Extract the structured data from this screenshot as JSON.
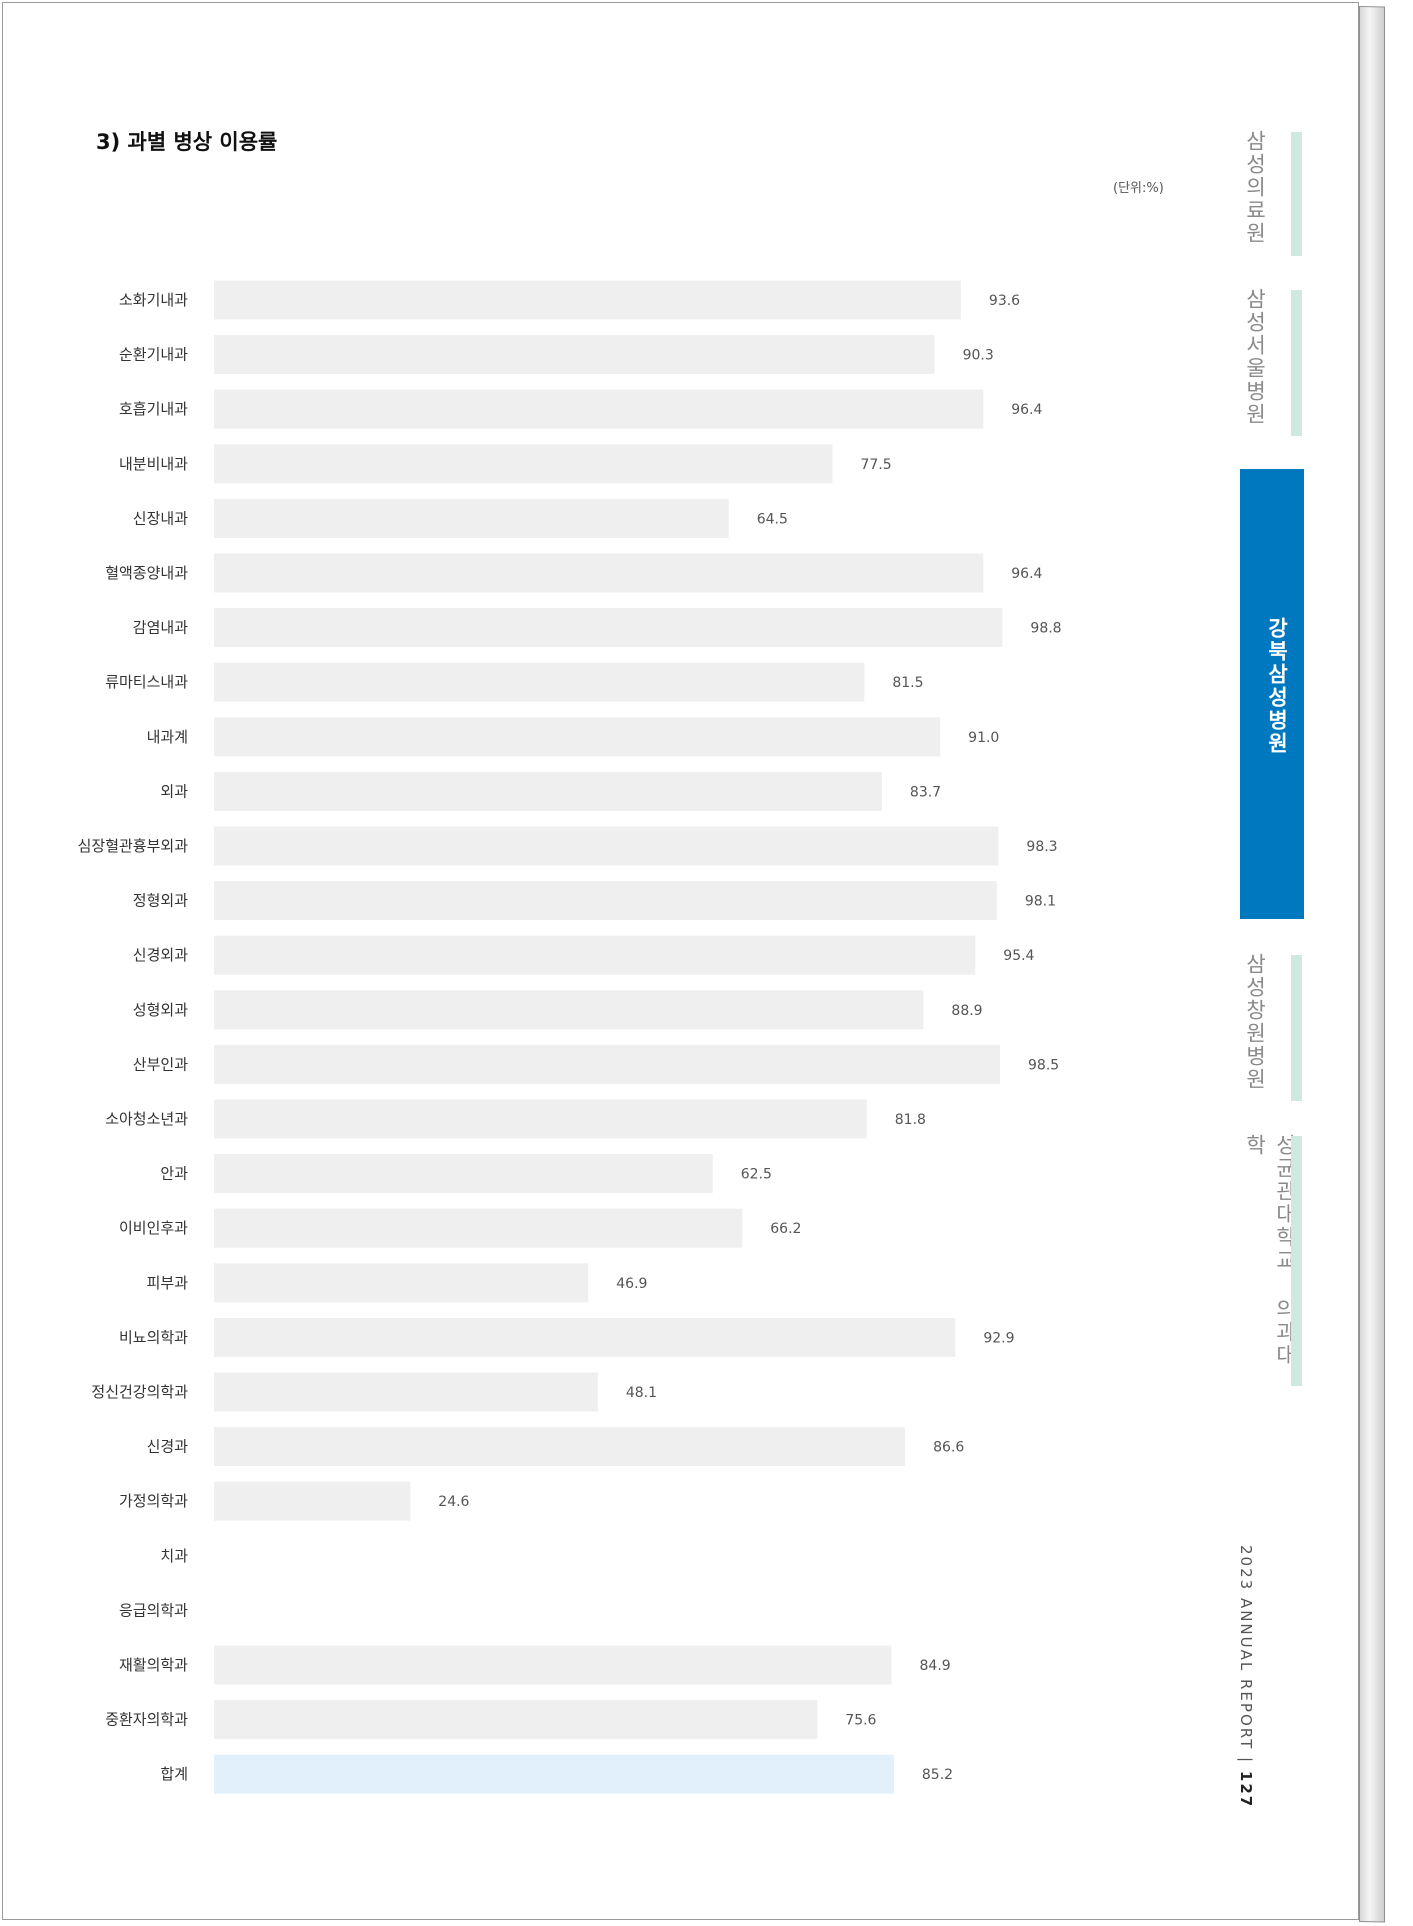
{
  "section": {
    "title": "3) 과별 병상 이용률",
    "unit": "(단위:%)"
  },
  "side_tabs": [
    {
      "label": "삼성의료원",
      "active": false
    },
    {
      "label": "삼성서울병원",
      "active": false
    },
    {
      "label": "강북삼성병원",
      "active": true
    },
    {
      "label": "삼성창원병원",
      "active": false
    },
    {
      "label": "성균관대학교 의과대학",
      "active": false
    }
  ],
  "footer": {
    "report": "2023 ANNUAL REPORT",
    "separator": "|",
    "page_number": "127"
  },
  "colors": {
    "bar": "#efefef",
    "total_bar": "#e1f0fa",
    "active_tab": "#0078c0",
    "tab_bar": "#cfe9df"
  },
  "chart_data": {
    "type": "bar",
    "orientation": "horizontal",
    "title": "3) 과별 병상 이용률",
    "unit": "(단위:%)",
    "xlim": [
      0,
      100
    ],
    "grid": false,
    "legend": "none",
    "categories": [
      "소화기내과",
      "순환기내과",
      "호흡기내과",
      "내분비내과",
      "신장내과",
      "혈액종양내과",
      "감염내과",
      "류마티스내과",
      "내과계",
      "외과",
      "심장혈관흉부외과",
      "정형외과",
      "신경외과",
      "성형외과",
      "산부인과",
      "소아청소년과",
      "안과",
      "이비인후과",
      "피부과",
      "비뇨의학과",
      "정신건강의학과",
      "신경과",
      "가정의학과",
      "치과",
      "응급의학과",
      "재활의학과",
      "중환자의학과",
      "합계"
    ],
    "values": [
      93.6,
      90.3,
      96.4,
      77.5,
      64.5,
      96.4,
      98.8,
      81.5,
      91.0,
      83.7,
      98.3,
      98.1,
      95.4,
      88.9,
      98.5,
      81.8,
      62.5,
      66.2,
      46.9,
      92.9,
      48.1,
      86.6,
      24.6,
      null,
      null,
      84.9,
      75.6,
      85.2
    ],
    "value_labels": [
      "93.6",
      "90.3",
      "96.4",
      "77.5",
      "64.5",
      "96.4",
      "98.8",
      "81.5",
      "91.0",
      "83.7",
      "98.3",
      "98.1",
      "95.4",
      "88.9",
      "98.5",
      "81.8",
      "62.5",
      "66.2",
      "46.9",
      "92.9",
      "48.1",
      "86.6",
      "24.6",
      "",
      "",
      "84.9",
      "75.6",
      "85.2"
    ],
    "highlight_category": "합계"
  }
}
